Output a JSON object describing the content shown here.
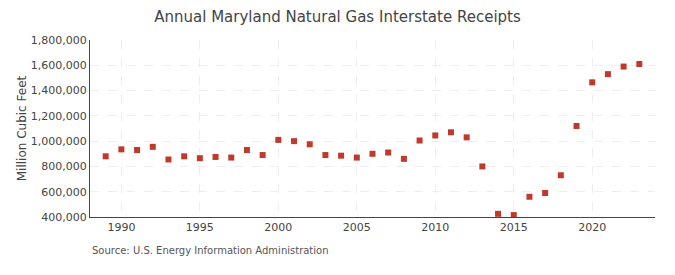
{
  "chart_data": {
    "type": "scatter",
    "title": "Annual Maryland Natural Gas Interstate Receipts",
    "ylabel": "Million Cubic Feet",
    "annotations": [
      "Source: U.S. Energy Information Administration"
    ],
    "x": [
      1989,
      1990,
      1991,
      1992,
      1993,
      1994,
      1995,
      1996,
      1997,
      1998,
      1999,
      2000,
      2001,
      2002,
      2003,
      2004,
      2005,
      2006,
      2007,
      2008,
      2009,
      2010,
      2011,
      2012,
      2013,
      2014,
      2015,
      2016,
      2017,
      2018,
      2019,
      2020,
      2021,
      2022,
      2023
    ],
    "values": [
      880000,
      935000,
      930000,
      955000,
      855000,
      880000,
      865000,
      875000,
      870000,
      930000,
      890000,
      1010000,
      1000000,
      975000,
      890000,
      885000,
      870000,
      900000,
      910000,
      860000,
      1005000,
      1045000,
      1070000,
      1030000,
      800000,
      425000,
      415000,
      560000,
      590000,
      730000,
      1120000,
      1465000,
      1530000,
      1590000,
      1610000
    ],
    "color": "#c0392b",
    "marker": "square",
    "xlim": [
      1988,
      2024
    ],
    "xticks": [
      1990,
      1995,
      2000,
      2005,
      2010,
      2015,
      2020
    ],
    "ylim": [
      400000,
      1800000
    ],
    "yticks": [
      {
        "value": 400000,
        "label": "400,000"
      },
      {
        "value": 600000,
        "label": "600,000"
      },
      {
        "value": 800000,
        "label": "800,000"
      },
      {
        "value": 1000000,
        "label": "1,000,000"
      },
      {
        "value": 1200000,
        "label": "1,200,000"
      },
      {
        "value": 1400000,
        "label": "1,400,000"
      },
      {
        "value": 1600000,
        "label": "1,600,000"
      },
      {
        "value": 1800000,
        "label": "1,800,000"
      }
    ],
    "grid": true
  }
}
